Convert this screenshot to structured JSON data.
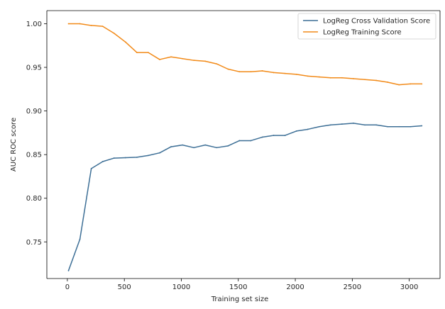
{
  "chart_data": {
    "type": "line",
    "xlabel": "Training set size",
    "ylabel": "AUC ROC score",
    "xlim": [
      -180,
      3270
    ],
    "ylim": [
      0.708,
      1.015
    ],
    "xticks": [
      0,
      500,
      1000,
      1500,
      2000,
      2500,
      3000
    ],
    "yticks": [
      0.75,
      0.8,
      0.85,
      0.9,
      0.95,
      1.0
    ],
    "ytick_labels": [
      "0.75",
      "0.80",
      "0.85",
      "0.90",
      "0.95",
      "1.00"
    ],
    "legend_position": "top-right",
    "grid": false,
    "x": [
      10,
      110,
      210,
      310,
      410,
      510,
      610,
      710,
      810,
      910,
      1010,
      1110,
      1210,
      1310,
      1410,
      1510,
      1610,
      1710,
      1810,
      1910,
      2010,
      2110,
      2210,
      2310,
      2410,
      2510,
      2610,
      2710,
      2810,
      2910,
      3010,
      3110
    ],
    "series": [
      {
        "name": "LogReg Cross Validation Score",
        "color": "#3d6f96",
        "values": [
          0.717,
          0.753,
          0.834,
          0.842,
          0.846,
          0.8465,
          0.847,
          0.849,
          0.852,
          0.859,
          0.861,
          0.858,
          0.861,
          0.858,
          0.86,
          0.866,
          0.866,
          0.87,
          0.872,
          0.872,
          0.877,
          0.879,
          0.882,
          0.884,
          0.885,
          0.886,
          0.884,
          0.884,
          0.882,
          0.882,
          0.882,
          0.883
        ]
      },
      {
        "name": "LogReg Training Score",
        "color": "#f28a18",
        "values": [
          1.0,
          1.0,
          0.998,
          0.997,
          0.989,
          0.979,
          0.967,
          0.967,
          0.959,
          0.962,
          0.96,
          0.958,
          0.957,
          0.954,
          0.948,
          0.945,
          0.945,
          0.946,
          0.944,
          0.943,
          0.942,
          0.94,
          0.939,
          0.938,
          0.938,
          0.937,
          0.936,
          0.935,
          0.933,
          0.93,
          0.931,
          0.931
        ]
      }
    ]
  }
}
